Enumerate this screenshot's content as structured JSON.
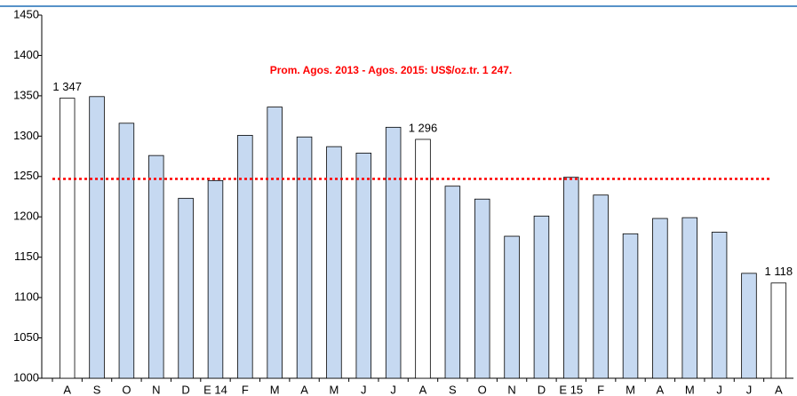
{
  "chart_data": {
    "type": "bar",
    "categories": [
      "A",
      "S",
      "O",
      "N",
      "D",
      "E 14",
      "F",
      "M",
      "A",
      "M",
      "J",
      "J",
      "A",
      "S",
      "O",
      "N",
      "D",
      "E 15",
      "F",
      "M",
      "A",
      "M",
      "J",
      "J",
      "A"
    ],
    "values": [
      1347,
      1349,
      1316,
      1276,
      1223,
      1245,
      1301,
      1336,
      1299,
      1287,
      1279,
      1311,
      1296,
      1238,
      1222,
      1176,
      1201,
      1249,
      1227,
      1179,
      1198,
      1199,
      1181,
      1130,
      1118
    ],
    "value_labels": [
      "1 347",
      null,
      null,
      null,
      null,
      null,
      null,
      null,
      null,
      null,
      null,
      null,
      "1 296",
      null,
      null,
      null,
      null,
      null,
      null,
      null,
      null,
      null,
      null,
      null,
      "1 118"
    ],
    "colors": [
      "#ffffff",
      "#c6d9f1",
      "#c6d9f1",
      "#c6d9f1",
      "#c6d9f1",
      "#c6d9f1",
      "#c6d9f1",
      "#c6d9f1",
      "#c6d9f1",
      "#c6d9f1",
      "#c6d9f1",
      "#c6d9f1",
      "#ffffff",
      "#c6d9f1",
      "#c6d9f1",
      "#c6d9f1",
      "#c6d9f1",
      "#c6d9f1",
      "#c6d9f1",
      "#c6d9f1",
      "#c6d9f1",
      "#c6d9f1",
      "#c6d9f1",
      "#c6d9f1",
      "#ffffff"
    ],
    "ylim": [
      1000,
      1450
    ],
    "yticks": [
      1000,
      1050,
      1100,
      1150,
      1200,
      1250,
      1300,
      1350,
      1400,
      1450
    ],
    "reference_line": {
      "value": 1247,
      "color": "#ff0000",
      "label": "Prom. Agos. 2013 - Agos. 2015: US$/oz.tr. 1 247."
    }
  }
}
